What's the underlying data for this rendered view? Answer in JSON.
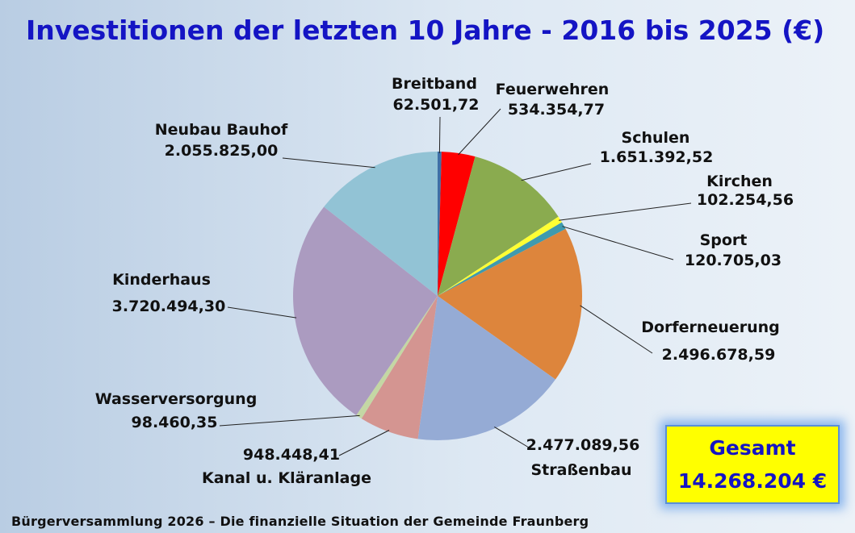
{
  "title": "Investitionen der letzten 10 Jahre - 2016 bis 2025 (€)",
  "footer": "Bürgerversammlung 2026 – Die finanzielle Situation der Gemeinde Fraunberg",
  "total": {
    "label": "Gesamt",
    "value": "14.268.204 €"
  },
  "chart_data": {
    "type": "pie",
    "title": "Investitionen der letzten 10 Jahre - 2016 bis 2025 (€)",
    "start": "12 o'clock, clockwise",
    "slices": [
      {
        "name": "Breitband",
        "value": 62501.72,
        "value_label": "62.501,72",
        "color": "#3f6fa6"
      },
      {
        "name": "Feuerwehren",
        "value": 534354.77,
        "value_label": "534.354,77",
        "color": "#ff0000"
      },
      {
        "name": "Schulen",
        "value": 1651392.52,
        "value_label": "1.651.392,52",
        "color": "#8aab4f"
      },
      {
        "name": "Kirchen",
        "value": 102254.56,
        "value_label": "102.254,56",
        "color": "#ffff33"
      },
      {
        "name": "Sport",
        "value": 120705.03,
        "value_label": "120.705,03",
        "color": "#3f9aae"
      },
      {
        "name": "Dorferneuerung",
        "value": 2496678.59,
        "value_label": "2.496.678,59",
        "color": "#dd853c"
      },
      {
        "name": "Straßenbau",
        "value": 2477089.56,
        "value_label": "2.477.089,56",
        "color": "#95abd5"
      },
      {
        "name": "Kanal u. Kläranlage",
        "value": 948448.41,
        "value_label": "948.448,41",
        "color": "#d49591"
      },
      {
        "name": "Wasserversorgung",
        "value": 98460.35,
        "value_label": "98.460,35",
        "color": "#c4d7a4"
      },
      {
        "name": "Kinderhaus",
        "value": 3720494.3,
        "value_label": "3.720.494,30",
        "color": "#ab9bc0"
      },
      {
        "name": "Neubau Bauhof",
        "value": 2055825.0,
        "value_label": "2.055.825,00",
        "color": "#92c3d5"
      }
    ]
  }
}
